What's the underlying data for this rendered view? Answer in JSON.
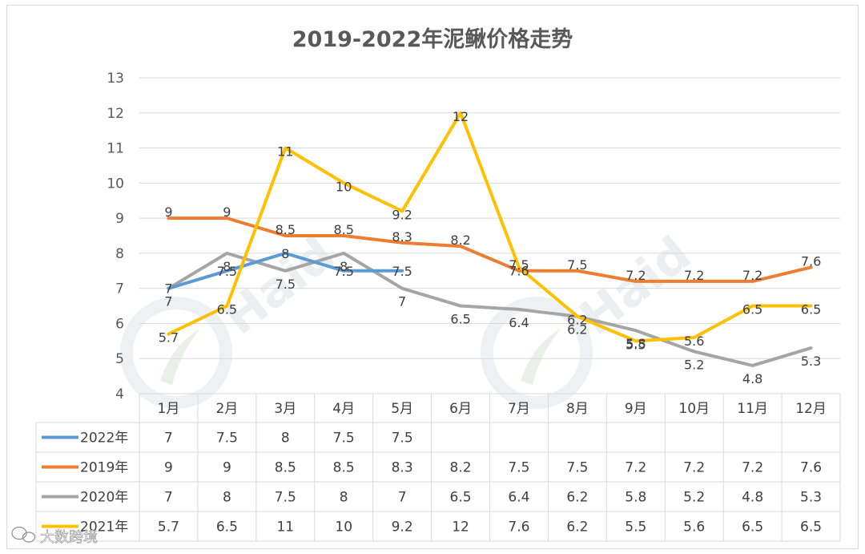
{
  "chart_data": {
    "type": "line",
    "title": "2019-2022年泥鳅价格走势",
    "xlabel": "",
    "ylabel": "",
    "categories": [
      "1月",
      "2月",
      "3月",
      "4月",
      "5月",
      "6月",
      "7月",
      "8月",
      "9月",
      "10月",
      "11月",
      "12月"
    ],
    "ylim": [
      4,
      13
    ],
    "yticks": [
      4,
      5,
      6,
      7,
      8,
      9,
      10,
      11,
      12,
      13
    ],
    "grid": true,
    "legend": "data-table-left",
    "series": [
      {
        "name": "2022年",
        "color": "#5b9bd5",
        "values": [
          7,
          7.5,
          8,
          7.5,
          7.5,
          null,
          null,
          null,
          null,
          null,
          null,
          null
        ]
      },
      {
        "name": "2019年",
        "color": "#ed7d31",
        "values": [
          9,
          9,
          8.5,
          8.5,
          8.3,
          8.2,
          7.5,
          7.5,
          7.2,
          7.2,
          7.2,
          7.6
        ]
      },
      {
        "name": "2020年",
        "color": "#a5a5a5",
        "values": [
          7,
          8,
          7.5,
          8,
          7,
          6.5,
          6.4,
          6.2,
          5.8,
          5.2,
          4.8,
          5.3
        ]
      },
      {
        "name": "2021年",
        "color": "#ffc000",
        "values": [
          5.7,
          6.5,
          11,
          10,
          9.2,
          12,
          7.6,
          6.2,
          5.5,
          5.6,
          6.5,
          6.5
        ]
      }
    ]
  },
  "watermark": {
    "text": "Haid",
    "icon": "haid-logo-icon"
  },
  "footer": {
    "text": "大数跨境",
    "icon": "wechat-logo-icon"
  }
}
